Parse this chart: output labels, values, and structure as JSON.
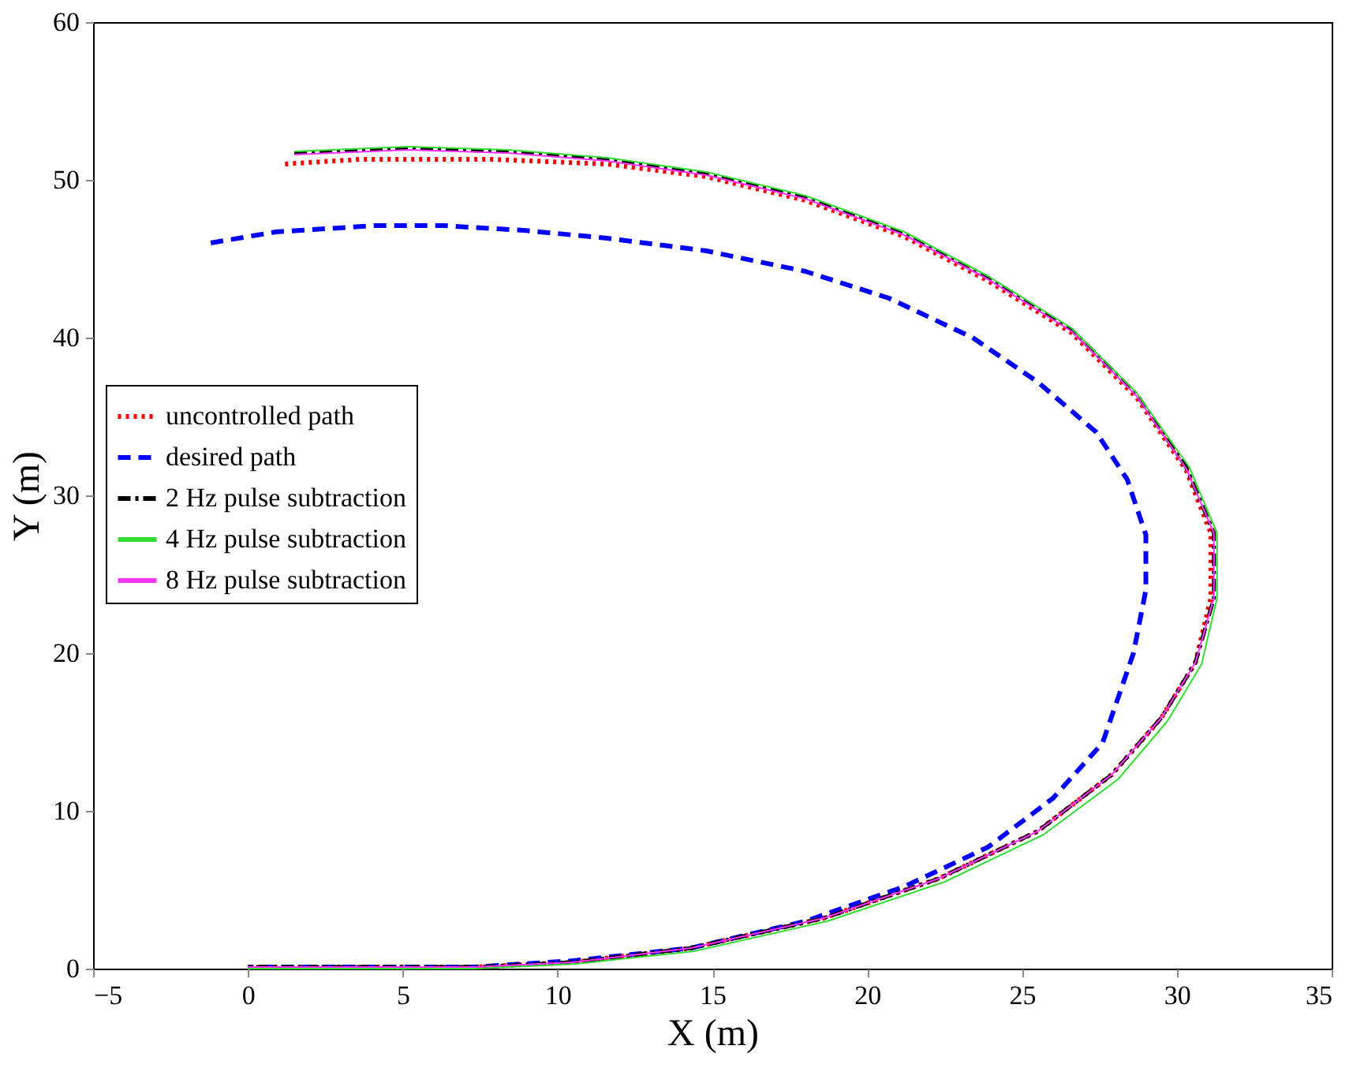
{
  "chart_data": {
    "type": "line",
    "xlabel": "X (m)",
    "ylabel": "Y (m)",
    "xlim": [
      -5,
      35
    ],
    "xticks": [
      -5,
      0,
      5,
      10,
      15,
      20,
      25,
      30,
      35
    ],
    "ylim": [
      0,
      60
    ],
    "yticks": [
      0,
      10,
      20,
      30,
      40,
      50,
      60
    ],
    "grid": false,
    "legend": "left",
    "marker": "none",
    "series": [
      {
        "name": "uncontrolled path",
        "color": "#ff0000",
        "line_style": "dotted",
        "x": [
          1.2,
          3.6,
          7.9,
          11.6,
          14.8,
          18.0,
          21.2,
          23.9,
          26.6,
          28.7,
          30.3,
          31.1,
          31.1,
          30.6,
          29.5,
          27.9,
          25.5,
          22.3,
          18.6,
          14.3,
          10.5,
          7.3,
          0
        ],
        "values": [
          51.0,
          51.3,
          51.3,
          51.0,
          50.2,
          48.7,
          46.4,
          43.6,
          40.3,
          36.2,
          31.6,
          27.6,
          23.5,
          19.4,
          15.9,
          12.3,
          8.7,
          5.7,
          3.2,
          1.3,
          0.4,
          0.1,
          0.1
        ]
      },
      {
        "name": "desired path",
        "color": "#0000ff",
        "line_style": "dashed",
        "x": [
          -1.2,
          0.9,
          4.1,
          6.3,
          8.9,
          11.6,
          14.8,
          18.0,
          20.7,
          23.4,
          25.5,
          27.4,
          28.4,
          29.0,
          29.0,
          28.6,
          27.6,
          26.0,
          23.9,
          21.2,
          18.0,
          14.3,
          10.5,
          7.3,
          0
        ],
        "values": [
          46.0,
          46.7,
          47.1,
          47.1,
          46.8,
          46.3,
          45.5,
          44.2,
          42.5,
          40.0,
          37.2,
          34.0,
          31.0,
          27.5,
          24.0,
          20.0,
          14.3,
          10.8,
          7.7,
          5.2,
          3.0,
          1.3,
          0.5,
          0.1,
          0.1
        ]
      },
      {
        "name": "2 Hz pulse subtraction",
        "color": "#000000",
        "line_style": "dashdot",
        "x": [
          1.5,
          5.2,
          8.4,
          11.6,
          14.8,
          18.0,
          21.2,
          23.9,
          26.6,
          28.7,
          30.3,
          31.2,
          31.2,
          30.6,
          29.5,
          27.9,
          25.5,
          22.3,
          18.6,
          14.3,
          10.5,
          7.3,
          0
        ],
        "values": [
          51.7,
          52.0,
          51.8,
          51.3,
          50.4,
          48.9,
          46.6,
          43.8,
          40.5,
          36.4,
          31.8,
          27.6,
          23.5,
          19.4,
          15.9,
          12.3,
          8.7,
          5.7,
          3.2,
          1.3,
          0.4,
          0.1,
          0.1
        ]
      },
      {
        "name": "4 Hz pulse subtraction",
        "color": "#33dd33",
        "line_style": "solid",
        "x": [
          1.5,
          5.2,
          8.4,
          11.6,
          14.8,
          18.0,
          21.2,
          23.9,
          26.6,
          28.7,
          30.4,
          31.3,
          31.3,
          30.8,
          29.7,
          28.1,
          25.7,
          22.5,
          18.7,
          14.4,
          10.6,
          7.3,
          0
        ],
        "values": [
          51.8,
          52.1,
          51.9,
          51.4,
          50.5,
          49.0,
          46.7,
          43.9,
          40.6,
          36.5,
          31.8,
          27.6,
          23.5,
          19.3,
          15.7,
          12.0,
          8.5,
          5.5,
          3.0,
          1.1,
          0.3,
          0.0,
          0.0
        ]
      },
      {
        "name": "8 Hz pulse subtraction",
        "color": "#ff33ff",
        "line_style": "solid",
        "x": [
          1.5,
          5.2,
          8.4,
          11.6,
          14.8,
          18.0,
          21.2,
          23.9,
          26.6,
          28.7,
          30.3,
          31.2,
          31.2,
          30.6,
          29.5,
          27.9,
          25.5,
          22.3,
          18.6,
          14.3,
          10.5,
          7.3,
          0
        ],
        "values": [
          51.6,
          51.9,
          51.7,
          51.2,
          50.3,
          48.8,
          46.5,
          43.7,
          40.4,
          36.3,
          31.7,
          27.6,
          23.5,
          19.4,
          15.9,
          12.3,
          8.7,
          5.7,
          3.2,
          1.3,
          0.4,
          0.1,
          0.1
        ]
      }
    ]
  }
}
